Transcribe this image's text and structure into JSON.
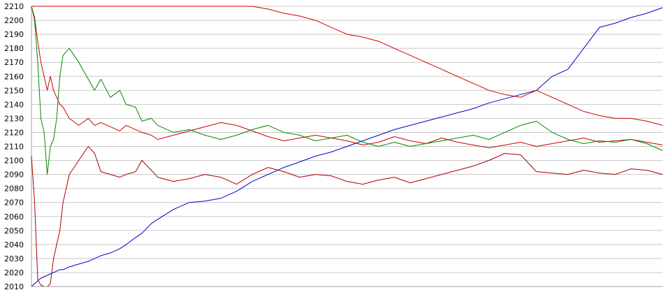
{
  "chart_data": {
    "type": "line",
    "title": "",
    "xlabel": "",
    "ylabel": "",
    "ylim": [
      2010,
      2210
    ],
    "yticks": [
      2010,
      2020,
      2030,
      2040,
      2050,
      2060,
      2070,
      2080,
      2090,
      2100,
      2110,
      2120,
      2130,
      2140,
      2150,
      2160,
      2170,
      2180,
      2190,
      2200,
      2210
    ],
    "grid": true,
    "legend": "none",
    "x": [
      0,
      1,
      2,
      3,
      4,
      5,
      6,
      7,
      8,
      9,
      10,
      12,
      15,
      18,
      20,
      22,
      25,
      28,
      30,
      33,
      35,
      38,
      40,
      45,
      50,
      55,
      60,
      65,
      70,
      75,
      80,
      85,
      90,
      95,
      100,
      105,
      110,
      115,
      120,
      125,
      130,
      135,
      140,
      145,
      150,
      155,
      160,
      165,
      170,
      175,
      180,
      185,
      190,
      195,
      200
    ],
    "series": [
      {
        "color": "#0000cc",
        "values": [
          2010,
          2012,
          2014,
          2016,
          2017,
          2018,
          2019,
          2020,
          2021,
          2022,
          2022,
          2024,
          2026,
          2028,
          2030,
          2032,
          2034,
          2037,
          2040,
          2045,
          2048,
          2055,
          2058,
          2065,
          2070,
          2071,
          2073,
          2078,
          2085,
          2090,
          2095,
          2099,
          2103,
          2106,
          2110,
          2114,
          2118,
          2122,
          2125,
          2128,
          2131,
          2134,
          2137,
          2141,
          2144,
          2147,
          2150,
          2160,
          2165,
          2180,
          2195,
          2198,
          2202,
          2205,
          2209
        ]
      },
      {
        "color": "#cc0000",
        "values": [
          2210,
          2210,
          2210,
          2210,
          2210,
          2210,
          2210,
          2210,
          2210,
          2210,
          2210,
          2210,
          2210,
          2210,
          2210,
          2210,
          2210,
          2210,
          2210,
          2210,
          2210,
          2210,
          2210,
          2210,
          2210,
          2210,
          2210,
          2210,
          2210,
          2208,
          2205,
          2203,
          2200,
          2195,
          2190,
          2188,
          2185,
          2180,
          2175,
          2170,
          2165,
          2160,
          2155,
          2150,
          2147,
          2145,
          2150,
          2145,
          2140,
          2135,
          2132,
          2130,
          2130,
          2128,
          2125
        ]
      },
      {
        "color": "#cc0000",
        "values": [
          2210,
          2202,
          2185,
          2170,
          2160,
          2150,
          2160,
          2150,
          2145,
          2140,
          2138,
          2130,
          2125,
          2130,
          2125,
          2127,
          2124,
          2121,
          2125,
          2122,
          2120,
          2118,
          2115,
          2118,
          2121,
          2124,
          2127,
          2125,
          2121,
          2117,
          2114,
          2116,
          2118,
          2116,
          2114,
          2111,
          2113,
          2117,
          2114,
          2112,
          2116,
          2113,
          2111,
          2109,
          2111,
          2113,
          2110,
          2112,
          2114,
          2116,
          2113,
          2114,
          2115,
          2113,
          2111
        ]
      },
      {
        "color": "#008800",
        "values": [
          2210,
          2200,
          2170,
          2130,
          2120,
          2090,
          2110,
          2115,
          2130,
          2160,
          2175,
          2180,
          2170,
          2158,
          2150,
          2158,
          2145,
          2150,
          2140,
          2138,
          2128,
          2130,
          2125,
          2120,
          2122,
          2118,
          2115,
          2118,
          2122,
          2125,
          2120,
          2118,
          2114,
          2116,
          2118,
          2113,
          2110,
          2113,
          2110,
          2112,
          2114,
          2116,
          2118,
          2115,
          2120,
          2125,
          2128,
          2120,
          2115,
          2112,
          2114,
          2113,
          2115,
          2112,
          2107
        ]
      },
      {
        "color": "#aa0000",
        "values": [
          2103,
          2070,
          2015,
          2011,
          2010,
          2010,
          2012,
          2030,
          2040,
          2050,
          2070,
          2090,
          2100,
          2110,
          2105,
          2092,
          2090,
          2088,
          2090,
          2092,
          2100,
          2093,
          2088,
          2085,
          2087,
          2090,
          2088,
          2083,
          2090,
          2095,
          2092,
          2088,
          2090,
          2089,
          2085,
          2083,
          2086,
          2088,
          2084,
          2087,
          2090,
          2093,
          2096,
          2100,
          2105,
          2104,
          2092,
          2091,
          2090,
          2093,
          2091,
          2090,
          2094,
          2093,
          2090
        ]
      }
    ]
  }
}
